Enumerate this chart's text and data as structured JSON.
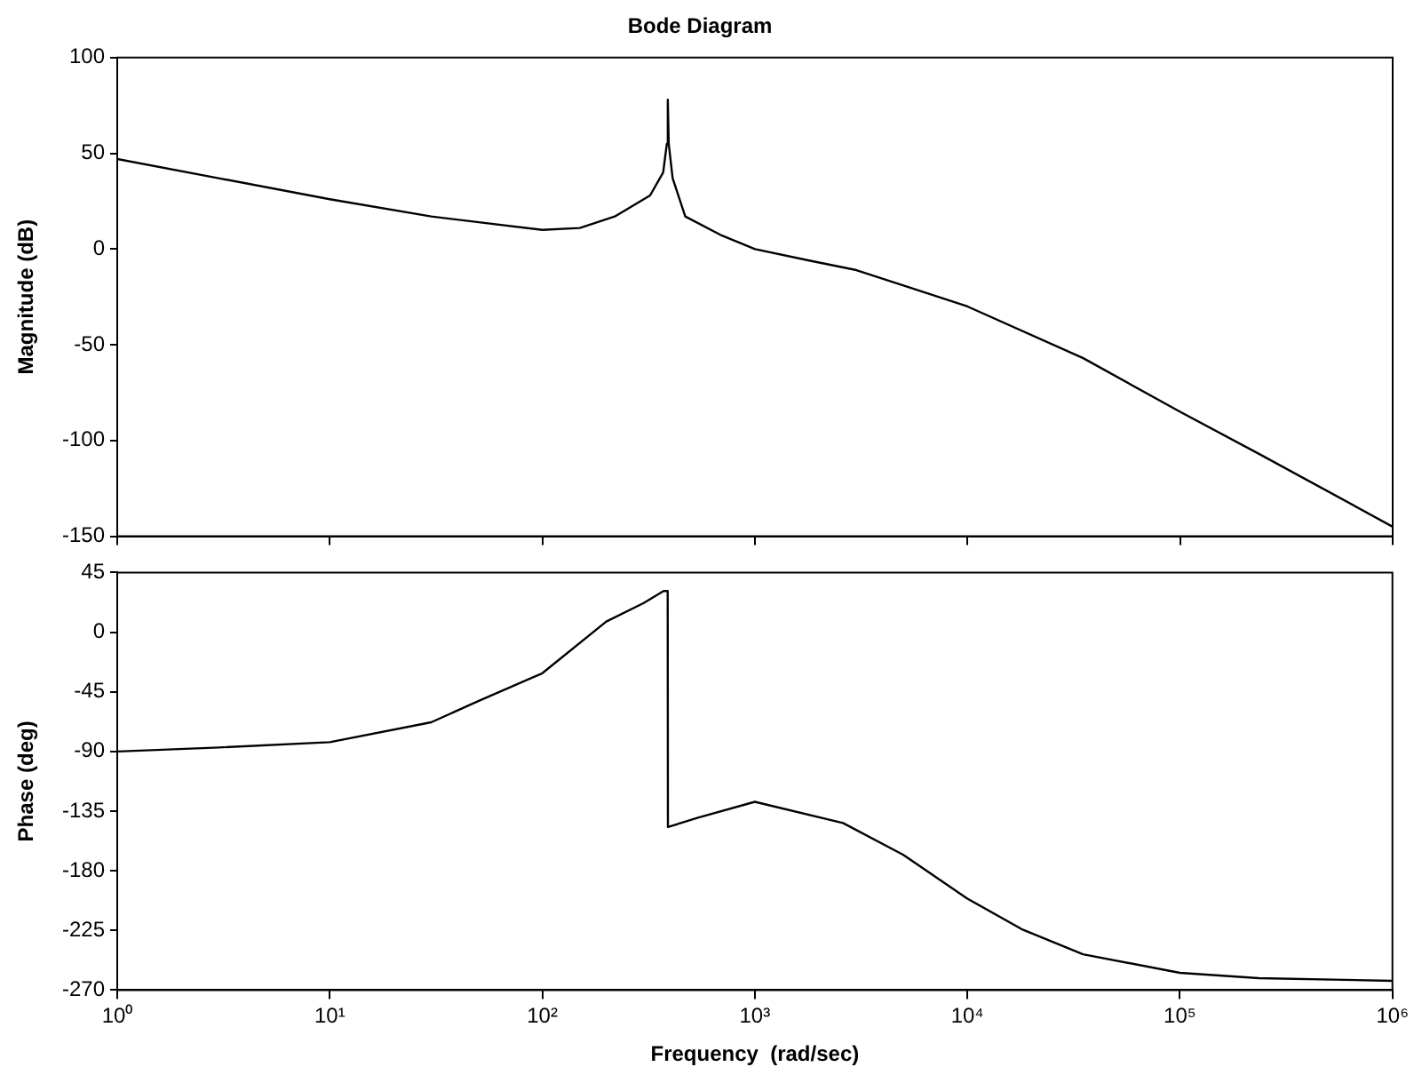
{
  "chart_data": [
    {
      "type": "line",
      "title": "Bode Diagram",
      "ylabel": "Magnitude (dB)",
      "log": "x",
      "tick_labels": "y",
      "grid": false,
      "marker": "none",
      "line_style": "solid",
      "xlim": [
        1,
        1000000
      ],
      "xticks": [
        {
          "value": 1,
          "label": null
        },
        {
          "value": 10,
          "label": null
        },
        {
          "value": 100,
          "label": null
        },
        {
          "value": 1000,
          "label": null
        },
        {
          "value": 10000,
          "label": null
        },
        {
          "value": 100000,
          "label": null
        },
        {
          "value": 1000000,
          "label": null
        }
      ],
      "ylim": [
        -150,
        100
      ],
      "yticks": [
        -150,
        -100,
        -50,
        0,
        50,
        100
      ],
      "x": [
        1,
        3,
        10,
        30,
        100,
        150,
        219,
        321,
        370,
        385,
        389,
        393,
        410,
        470,
        700,
        1000,
        1800,
        3000,
        5000,
        10000,
        35000,
        100000,
        235000,
        1000000
      ],
      "series": [
        {
          "color": "#000000",
          "values": [
            47,
            37,
            26,
            17,
            10,
            11,
            17,
            28,
            40,
            55,
            78,
            55,
            37,
            17,
            7,
            0,
            -6,
            -11,
            -19,
            -30,
            -57,
            -85,
            -107,
            -145
          ]
        }
      ]
    },
    {
      "type": "line",
      "xlabel": "Frequency  (rad/sec)",
      "ylabel": "Phase (deg)",
      "log": "x",
      "grid": false,
      "marker": "none",
      "line_style": "solid",
      "xlim": [
        1,
        1000000
      ],
      "xticks": [
        {
          "value": 1,
          "label": "10⁰"
        },
        {
          "value": 10,
          "label": "10¹"
        },
        {
          "value": 100,
          "label": "10²"
        },
        {
          "value": 1000,
          "label": "10³"
        },
        {
          "value": 10000,
          "label": "10⁴"
        },
        {
          "value": 100000,
          "label": "10⁵"
        },
        {
          "value": 1000000,
          "label": "10⁶"
        }
      ],
      "ylim": [
        -270,
        45
      ],
      "yticks": [
        -270,
        -225,
        -180,
        -135,
        -90,
        -45,
        0,
        45
      ],
      "x": [
        1,
        3,
        10,
        30,
        50,
        100,
        200,
        300,
        372,
        389,
        390,
        540,
        1000,
        2600,
        5000,
        10000,
        18000,
        35000,
        100000,
        235000,
        1000000
      ],
      "series": [
        {
          "color": "#000000",
          "values": [
            -90,
            -87,
            -83,
            -68,
            -52,
            -31,
            8,
            22,
            31,
            31,
            -147,
            -140,
            -128,
            -144,
            -168,
            -201,
            -224,
            -243,
            -257,
            -261,
            -263
          ]
        }
      ]
    }
  ]
}
